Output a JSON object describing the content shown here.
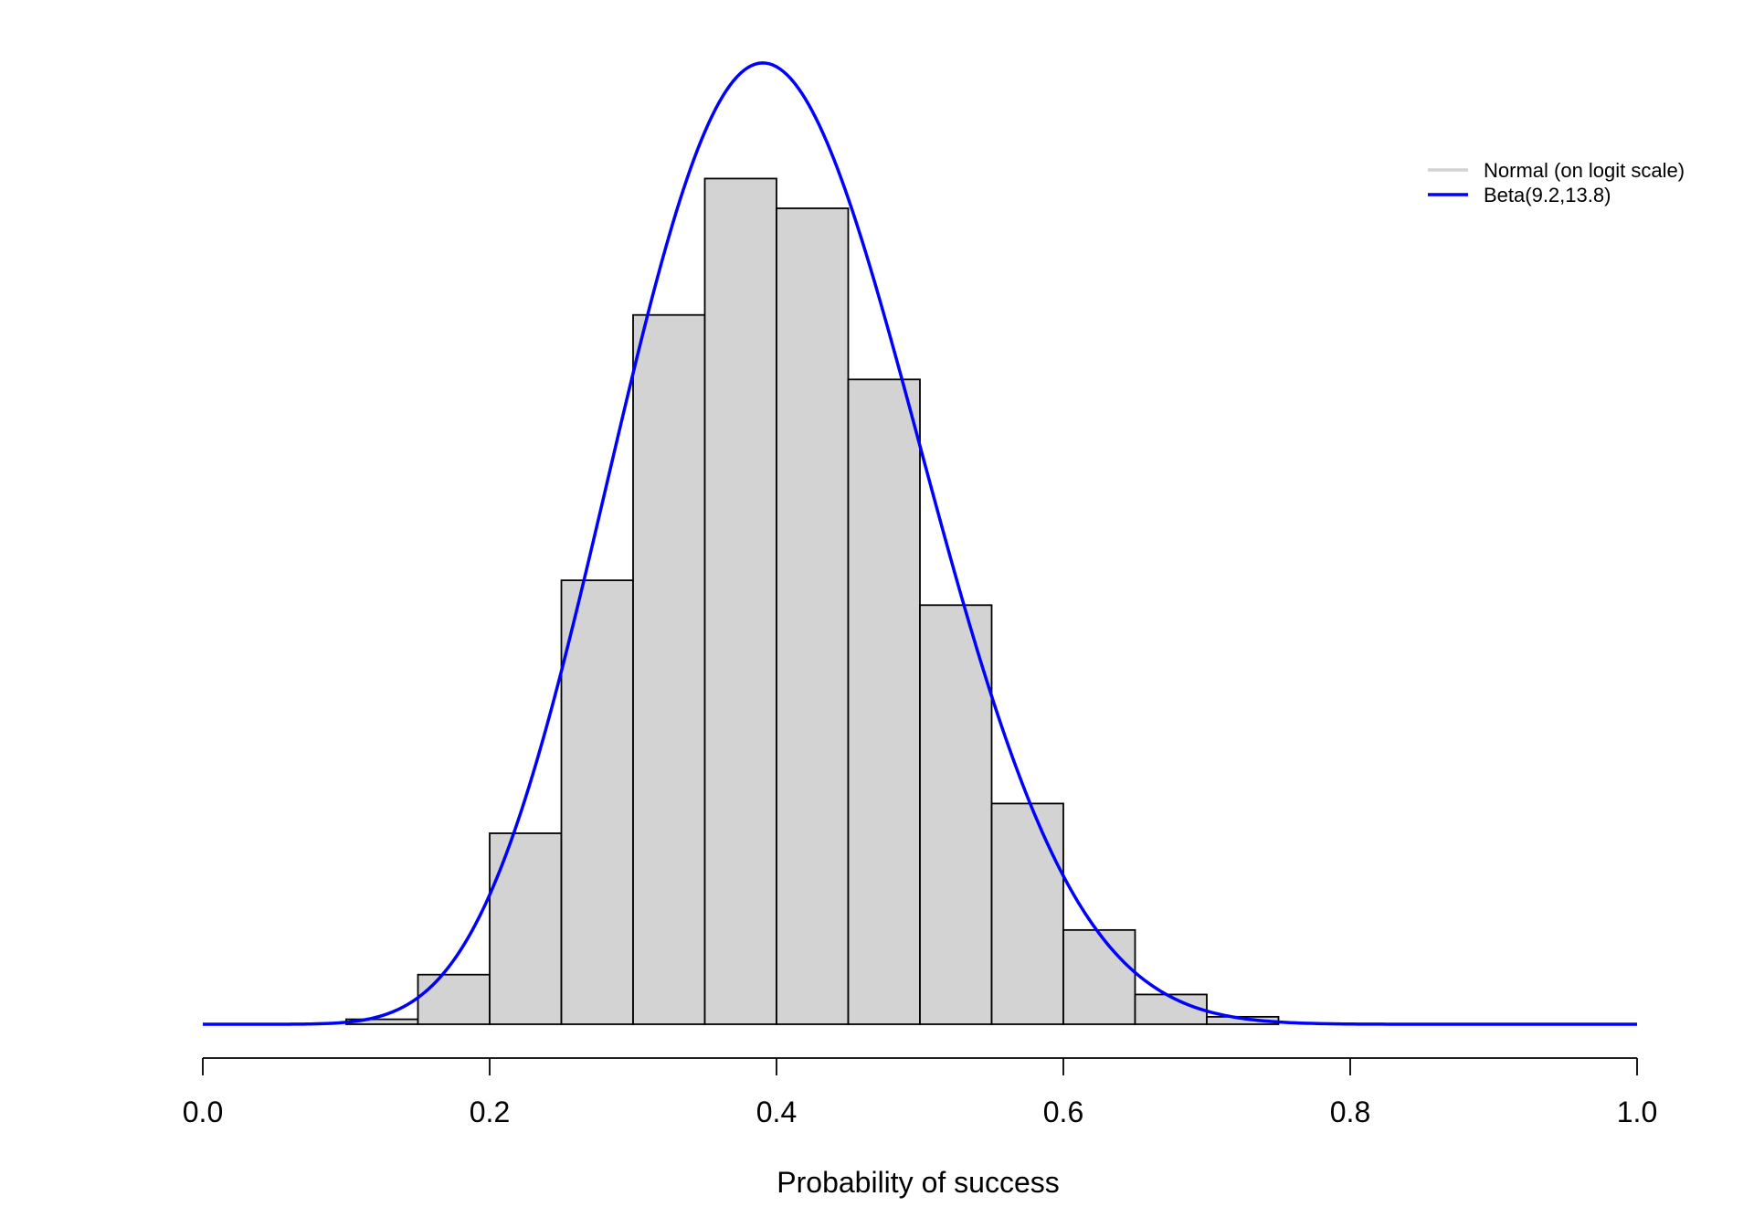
{
  "chart_data": {
    "type": "bar",
    "title": "",
    "xlabel": "Probability of success",
    "ylabel": "",
    "xlim": [
      0,
      1
    ],
    "ylim": [
      0,
      3.5
    ],
    "x_ticks": [
      0.0,
      0.2,
      0.4,
      0.6,
      0.8,
      1.0
    ],
    "x_tick_labels": [
      "0.0",
      "0.2",
      "0.4",
      "0.6",
      "0.8",
      "1.0"
    ],
    "grid": false,
    "legend_position": "top-right",
    "histogram": {
      "bin_edges": [
        0.1,
        0.15,
        0.2,
        0.25,
        0.3,
        0.35,
        0.4,
        0.45,
        0.5,
        0.55,
        0.6,
        0.65,
        0.7,
        0.75
      ],
      "densities": [
        0.02,
        0.2,
        0.77,
        1.79,
        2.86,
        3.41,
        3.29,
        2.6,
        1.69,
        0.89,
        0.38,
        0.12,
        0.03
      ],
      "fill_color": "#d3d3d3",
      "stroke_color": "#000000"
    },
    "series": [
      {
        "name": "Normal (on logit scale)",
        "color": "#d3d3d3",
        "points": []
      },
      {
        "name": "Beta(9.2,13.8)",
        "color": "#0000ff",
        "alpha": 9.2,
        "beta": 13.8,
        "points": []
      }
    ]
  }
}
